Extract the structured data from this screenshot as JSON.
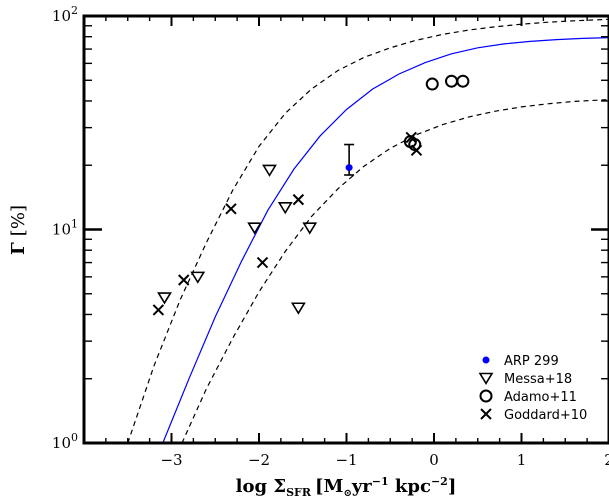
{
  "chart_data": {
    "type": "scatter",
    "xlabel": {
      "main": "log Σ",
      "sub": "SFR",
      "units_open": "[M",
      "units_sun": "⊙",
      "units_mid": "yr",
      "units_exp1": "−1",
      "units_space": " kpc",
      "units_exp2": "−2",
      "units_close": "]"
    },
    "ylabel": {
      "main": "Γ",
      "units": "[%]"
    },
    "xlim": [
      -4.0,
      2.0
    ],
    "ylim": [
      1,
      100
    ],
    "yscale": "log",
    "x_ticks": [
      -3,
      -2,
      -1,
      0,
      1,
      2
    ],
    "x_tick_labels": [
      "−3",
      "−2",
      "−1",
      "0",
      "1",
      "2"
    ],
    "y_ticks": [
      1,
      10,
      100
    ],
    "y_tick_labels": [
      {
        "base": "10",
        "exp": "0"
      },
      {
        "base": "10",
        "exp": "1"
      },
      {
        "base": "10",
        "exp": "2"
      }
    ],
    "legend_position": "bottom-right",
    "series": [
      {
        "name": "ARP 299",
        "marker": "filled-circle",
        "color": "#0000ff",
        "points": [
          {
            "x": -0.97,
            "y": 19.5,
            "yerr_low": 18.0,
            "yerr_high": 25.0
          }
        ]
      },
      {
        "name": "Messa+18",
        "marker": "triangle-down",
        "color": "#000000",
        "points": [
          {
            "x": -3.08,
            "y": 4.8
          },
          {
            "x": -2.7,
            "y": 6.0
          },
          {
            "x": -1.88,
            "y": 19.0
          },
          {
            "x": -2.05,
            "y": 10.2
          },
          {
            "x": -1.7,
            "y": 12.7
          },
          {
            "x": -1.42,
            "y": 10.2
          },
          {
            "x": -1.55,
            "y": 4.3
          }
        ]
      },
      {
        "name": "Adamo+11",
        "marker": "open-circle",
        "color": "#000000",
        "points": [
          {
            "x": -0.02,
            "y": 48.0
          },
          {
            "x": 0.2,
            "y": 49.5
          },
          {
            "x": 0.33,
            "y": 49.5
          },
          {
            "x": -0.27,
            "y": 25.8
          },
          {
            "x": -0.22,
            "y": 25.0
          }
        ]
      },
      {
        "name": "Goddard+10",
        "marker": "x",
        "color": "#000000",
        "points": [
          {
            "x": -3.15,
            "y": 4.2
          },
          {
            "x": -2.86,
            "y": 5.8
          },
          {
            "x": -2.32,
            "y": 12.5
          },
          {
            "x": -1.96,
            "y": 7.0
          },
          {
            "x": -1.55,
            "y": 13.8
          },
          {
            "x": -0.26,
            "y": 27.0
          },
          {
            "x": -0.2,
            "y": 23.5
          }
        ]
      }
    ],
    "model_curves": [
      {
        "style": "solid",
        "color": "#0000ff",
        "points": [
          {
            "x": -3.1,
            "y": 1.0
          },
          {
            "x": -2.8,
            "y": 2.0
          },
          {
            "x": -2.5,
            "y": 3.9
          },
          {
            "x": -2.2,
            "y": 7.1
          },
          {
            "x": -1.9,
            "y": 12.3
          },
          {
            "x": -1.6,
            "y": 19.2
          },
          {
            "x": -1.3,
            "y": 27.5
          },
          {
            "x": -1.0,
            "y": 36.5
          },
          {
            "x": -0.7,
            "y": 45.5
          },
          {
            "x": -0.4,
            "y": 53.5
          },
          {
            "x": -0.1,
            "y": 60.5
          },
          {
            "x": 0.2,
            "y": 66.5
          },
          {
            "x": 0.5,
            "y": 71.0
          },
          {
            "x": 0.8,
            "y": 74.0
          },
          {
            "x": 1.1,
            "y": 76.0
          },
          {
            "x": 1.4,
            "y": 77.5
          },
          {
            "x": 1.7,
            "y": 78.5
          },
          {
            "x": 2.0,
            "y": 79.2
          }
        ]
      },
      {
        "style": "dashed",
        "color": "#000000",
        "points": [
          {
            "x": -3.5,
            "y": 1.0
          },
          {
            "x": -3.2,
            "y": 2.3
          },
          {
            "x": -2.9,
            "y": 4.7
          },
          {
            "x": -2.6,
            "y": 8.7
          },
          {
            "x": -2.3,
            "y": 15.3
          },
          {
            "x": -2.0,
            "y": 24.5
          },
          {
            "x": -1.7,
            "y": 35.0
          },
          {
            "x": -1.4,
            "y": 45.5
          },
          {
            "x": -1.1,
            "y": 55.5
          },
          {
            "x": -0.8,
            "y": 64.0
          },
          {
            "x": -0.5,
            "y": 71.0
          },
          {
            "x": -0.2,
            "y": 77.0
          },
          {
            "x": 0.1,
            "y": 82.0
          },
          {
            "x": 0.4,
            "y": 86.0
          },
          {
            "x": 0.7,
            "y": 89.0
          },
          {
            "x": 1.0,
            "y": 91.5
          },
          {
            "x": 1.3,
            "y": 93.5
          },
          {
            "x": 1.6,
            "y": 95.0
          },
          {
            "x": 2.0,
            "y": 96.5
          }
        ]
      },
      {
        "style": "dashed",
        "color": "#000000",
        "points": [
          {
            "x": -2.88,
            "y": 1.0
          },
          {
            "x": -2.6,
            "y": 1.8
          },
          {
            "x": -2.3,
            "y": 3.1
          },
          {
            "x": -2.0,
            "y": 5.1
          },
          {
            "x": -1.7,
            "y": 7.9
          },
          {
            "x": -1.4,
            "y": 11.5
          },
          {
            "x": -1.1,
            "y": 15.5
          },
          {
            "x": -0.8,
            "y": 19.8
          },
          {
            "x": -0.5,
            "y": 24.0
          },
          {
            "x": -0.2,
            "y": 27.8
          },
          {
            "x": 0.1,
            "y": 31.0
          },
          {
            "x": 0.4,
            "y": 33.7
          },
          {
            "x": 0.7,
            "y": 35.8
          },
          {
            "x": 1.0,
            "y": 37.5
          },
          {
            "x": 1.3,
            "y": 38.8
          },
          {
            "x": 1.6,
            "y": 39.8
          },
          {
            "x": 2.0,
            "y": 40.6
          }
        ]
      }
    ]
  }
}
